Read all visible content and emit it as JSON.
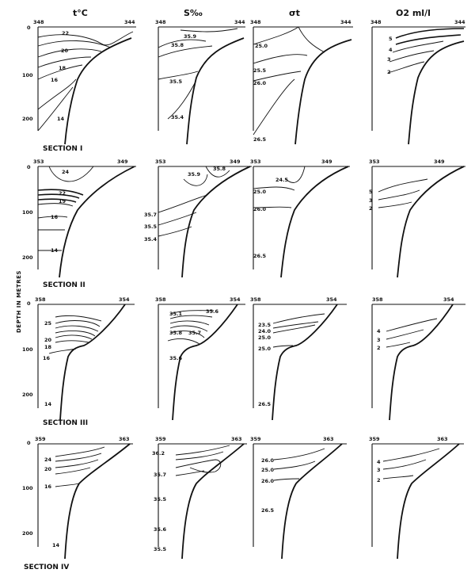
{
  "headers": {
    "temp": "t°C",
    "sal": "S‰",
    "sigma": "σt",
    "oxy": "O2 ml/l"
  },
  "y_axis_label": "DEPTH IN METRES",
  "depth_ticks": [
    "0",
    "100",
    "200"
  ],
  "sections": [
    {
      "title": "SECTION I",
      "station_left": "348",
      "station_right": "344",
      "temp_labels": [
        "22",
        "20",
        "18",
        "16",
        "14"
      ],
      "sal_labels": [
        "35.9",
        "35.8",
        "35.5",
        "35.4"
      ],
      "sigma_labels": [
        "25.0",
        "25.5",
        "26.0",
        "26.5"
      ],
      "oxy_labels": [
        "5",
        "4",
        "3",
        "2"
      ]
    },
    {
      "title": "SECTION II",
      "station_left": "353",
      "station_right": "349",
      "temp_labels": [
        "24",
        "22",
        "19",
        "16",
        "14"
      ],
      "sal_labels": [
        "35.9",
        "35.8",
        "35.7",
        "35.5",
        "35.4"
      ],
      "sigma_labels": [
        "24.5",
        "25.0",
        "26.0",
        "26.5"
      ],
      "oxy_labels": [
        "5",
        "3",
        "2"
      ]
    },
    {
      "title": "SECTION III",
      "station_left": "358",
      "station_right": "354",
      "temp_labels": [
        "25",
        "20",
        "18",
        "16",
        "14"
      ],
      "sal_labels": [
        "35.1",
        "35.6",
        "35.8",
        "35.7",
        "35.6"
      ],
      "sigma_labels": [
        "23.5",
        "24.0",
        "25.0",
        "25.0",
        "26.5"
      ],
      "oxy_labels": [
        "4",
        "3",
        "2"
      ]
    },
    {
      "title": "SECTION IV",
      "station_left": "359",
      "station_right": "363",
      "temp_labels": [
        "24",
        "20",
        "16",
        "14"
      ],
      "sal_labels": [
        "36.2",
        "35.7",
        "35.5",
        "35.6",
        "35.5"
      ],
      "sigma_labels": [
        "26.0",
        "25.0",
        "26.0",
        "26.5"
      ],
      "oxy_labels": [
        "4",
        "3",
        "2"
      ]
    }
  ]
}
